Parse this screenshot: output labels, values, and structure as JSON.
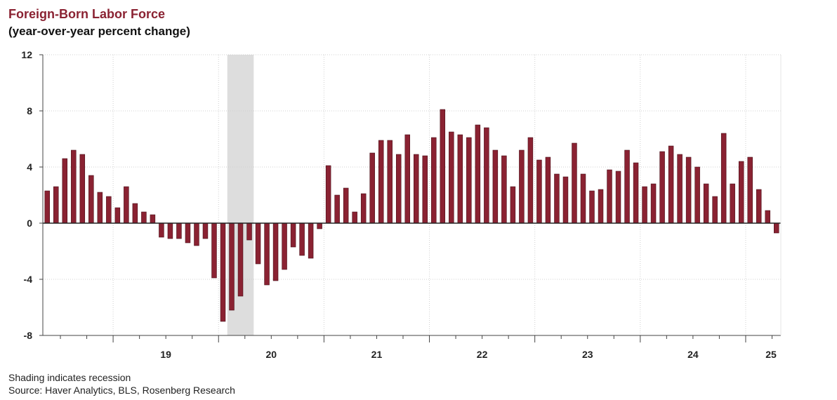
{
  "header": {
    "title": "Foreign-Born Labor Force",
    "subtitle": "(year-over-year percent change)"
  },
  "footer": {
    "note": "Shading indicates recession",
    "source": "Source: Haver Analytics, BLS, Rosenberg Research"
  },
  "colors": {
    "bar": "#8a2232",
    "recession": "#dddddd",
    "grid": "#d0d0d0",
    "axis": "#444444"
  },
  "chart_data": {
    "type": "bar",
    "title": "Foreign-Born Labor Force",
    "subtitle": "(year-over-year percent change)",
    "x_start": "2018-05",
    "frequency": "monthly",
    "ylim": [
      -8,
      12
    ],
    "yticks": [
      12,
      8,
      4,
      0,
      -4,
      -8
    ],
    "ytick_labels": [
      "12",
      "8",
      "4",
      "0",
      "-4",
      "-8"
    ],
    "xticks": [
      "19",
      "20",
      "21",
      "22",
      "23",
      "24",
      "25"
    ],
    "grid": true,
    "recession": {
      "start": "2020-02",
      "end": "2020-04"
    },
    "series": [
      {
        "values": [
          2.3,
          2.6,
          4.6,
          5.2,
          4.9,
          3.4,
          2.2,
          1.9,
          1.1,
          2.6,
          1.4,
          0.8,
          0.6,
          -1.0,
          -1.1,
          -1.1,
          -1.4,
          -1.6,
          -1.1,
          -3.9,
          -7.0,
          -6.2,
          -5.2,
          -1.2,
          -2.9,
          -4.4,
          -4.1,
          -3.3,
          -1.7,
          -2.3,
          -2.5,
          -0.4,
          4.1,
          2.0,
          2.5,
          0.8,
          2.1,
          5.0,
          5.9,
          5.9,
          4.9,
          6.3,
          4.9,
          4.8,
          6.1,
          8.1,
          6.5,
          6.3,
          6.1,
          7.0,
          6.8,
          5.2,
          4.8,
          2.6,
          5.2,
          6.1,
          4.5,
          4.7,
          3.5,
          3.3,
          5.7,
          3.5,
          2.3,
          2.4,
          3.8,
          3.7,
          5.2,
          4.3,
          2.6,
          2.8,
          5.1,
          5.5,
          4.9,
          4.7,
          4.0,
          2.8,
          1.9,
          6.4,
          2.8,
          4.4,
          4.7,
          2.4,
          0.9,
          -0.7
        ]
      }
    ]
  }
}
